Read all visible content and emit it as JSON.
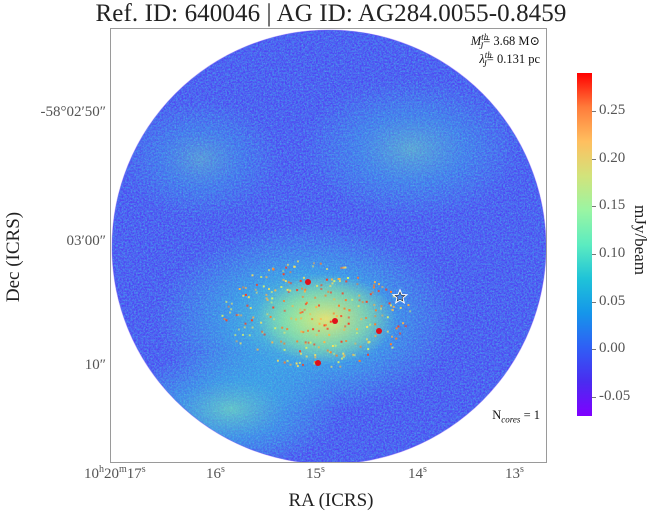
{
  "title": "Ref. ID: 640046 | AG ID: AG284.0055-0.8459",
  "annotations": {
    "mass_symbol": "M",
    "mass_super": "th",
    "mass_sub": "J",
    "mass_value": "= 3.68 M⊙",
    "lambda_symbol": "λ",
    "lambda_super": "th",
    "lambda_sub": "J",
    "lambda_value": "= 0.131 pc",
    "ncores_label": "N",
    "ncores_sub": "cores",
    "ncores_value": " = 1"
  },
  "axes": {
    "ylabel": "Dec (ICRS)",
    "xlabel": "RA (ICRS)",
    "yticks": [
      "-58°02′50″",
      "03′00″",
      "10″"
    ],
    "xticks": {
      "first_main": "10",
      "first_h": "h",
      "first_mid": "20",
      "first_m": "m",
      "first_sec": "17",
      "first_s": "s",
      "others": [
        {
          "n": "16",
          "u": "s"
        },
        {
          "n": "15",
          "u": "s"
        },
        {
          "n": "14",
          "u": "s"
        },
        {
          "n": "13",
          "u": "s"
        }
      ]
    }
  },
  "colorbar": {
    "label": "mJy/beam",
    "ticks": [
      "0.25",
      "0.20",
      "0.15",
      "0.10",
      "0.05",
      "0.00",
      "-0.05"
    ],
    "tick_values": [
      0.25,
      0.2,
      0.15,
      0.1,
      0.05,
      0.0,
      -0.05
    ],
    "range": [
      -0.07,
      0.29
    ],
    "colormap": "rainbow"
  },
  "colors": {
    "frame": "#9a9a9a",
    "star_marker": "#ffffff"
  }
}
